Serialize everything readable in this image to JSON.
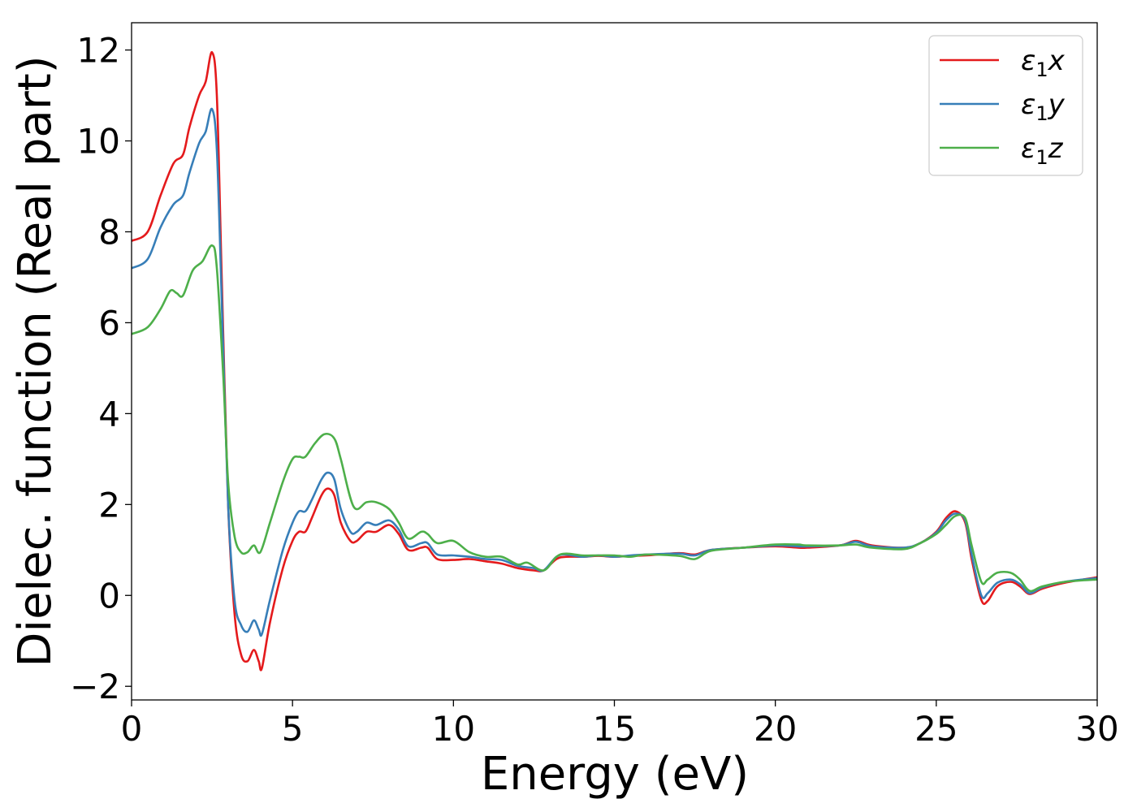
{
  "chart_data": {
    "type": "line",
    "title": "",
    "xlabel": "Energy (eV)",
    "ylabel": "Dielec. function (Real part)",
    "xlim": [
      0,
      30
    ],
    "ylim": [
      -2.3,
      12.6
    ],
    "xticks": [
      0,
      5,
      10,
      15,
      20,
      25,
      30
    ],
    "xtick_labels": [
      "0",
      "5",
      "10",
      "15",
      "20",
      "25",
      "30"
    ],
    "yticks": [
      -2,
      0,
      2,
      4,
      6,
      8,
      10,
      12
    ],
    "ytick_labels": [
      "−2",
      "0",
      "2",
      "4",
      "6",
      "8",
      "10",
      "12"
    ],
    "grid": false,
    "legend_position": "top-right",
    "series": [
      {
        "name": "ε₁x",
        "legend_base": "ε",
        "legend_sub": "1",
        "legend_tail": "x",
        "color": "#e41a1c",
        "points": [
          [
            0,
            7.8
          ],
          [
            0.5,
            8.0
          ],
          [
            0.9,
            8.8
          ],
          [
            1.3,
            9.5
          ],
          [
            1.6,
            9.7
          ],
          [
            1.8,
            10.3
          ],
          [
            2.1,
            11.0
          ],
          [
            2.3,
            11.3
          ],
          [
            2.5,
            11.95
          ],
          [
            2.65,
            11.0
          ],
          [
            2.8,
            7.0
          ],
          [
            3.0,
            2.0
          ],
          [
            3.2,
            -0.4
          ],
          [
            3.4,
            -1.3
          ],
          [
            3.6,
            -1.45
          ],
          [
            3.8,
            -1.2
          ],
          [
            3.95,
            -1.45
          ],
          [
            4.05,
            -1.6
          ],
          [
            4.3,
            -0.6
          ],
          [
            4.7,
            0.6
          ],
          [
            5.0,
            1.2
          ],
          [
            5.2,
            1.4
          ],
          [
            5.4,
            1.4
          ],
          [
            5.6,
            1.7
          ],
          [
            5.9,
            2.2
          ],
          [
            6.1,
            2.35
          ],
          [
            6.3,
            2.2
          ],
          [
            6.5,
            1.6
          ],
          [
            6.8,
            1.2
          ],
          [
            7.0,
            1.2
          ],
          [
            7.3,
            1.4
          ],
          [
            7.6,
            1.4
          ],
          [
            8.0,
            1.55
          ],
          [
            8.3,
            1.35
          ],
          [
            8.6,
            1.0
          ],
          [
            9.0,
            1.05
          ],
          [
            9.2,
            1.05
          ],
          [
            9.5,
            0.8
          ],
          [
            10.0,
            0.78
          ],
          [
            10.5,
            0.8
          ],
          [
            11.0,
            0.75
          ],
          [
            11.5,
            0.7
          ],
          [
            12.0,
            0.6
          ],
          [
            12.5,
            0.55
          ],
          [
            12.8,
            0.55
          ],
          [
            13.2,
            0.8
          ],
          [
            13.5,
            0.85
          ],
          [
            14.0,
            0.85
          ],
          [
            14.5,
            0.87
          ],
          [
            15.0,
            0.85
          ],
          [
            15.5,
            0.87
          ],
          [
            16.0,
            0.88
          ],
          [
            17.0,
            0.93
          ],
          [
            17.5,
            0.9
          ],
          [
            18.0,
            1.0
          ],
          [
            19.0,
            1.05
          ],
          [
            20.0,
            1.08
          ],
          [
            20.7,
            1.05
          ],
          [
            21.0,
            1.05
          ],
          [
            22.0,
            1.1
          ],
          [
            22.5,
            1.2
          ],
          [
            23.0,
            1.1
          ],
          [
            24.0,
            1.05
          ],
          [
            24.5,
            1.15
          ],
          [
            25.0,
            1.4
          ],
          [
            25.3,
            1.7
          ],
          [
            25.6,
            1.85
          ],
          [
            25.9,
            1.6
          ],
          [
            26.1,
            0.8
          ],
          [
            26.4,
            -0.1
          ],
          [
            26.6,
            -0.12
          ],
          [
            26.9,
            0.2
          ],
          [
            27.3,
            0.3
          ],
          [
            27.6,
            0.2
          ],
          [
            27.9,
            0.03
          ],
          [
            28.3,
            0.15
          ],
          [
            29.0,
            0.28
          ],
          [
            30.0,
            0.4
          ]
        ]
      },
      {
        "name": "ε₁y",
        "legend_base": "ε",
        "legend_sub": "1",
        "legend_tail": "y",
        "color": "#377eb8",
        "points": [
          [
            0,
            7.2
          ],
          [
            0.5,
            7.4
          ],
          [
            0.9,
            8.1
          ],
          [
            1.3,
            8.6
          ],
          [
            1.6,
            8.8
          ],
          [
            1.8,
            9.3
          ],
          [
            2.1,
            9.95
          ],
          [
            2.3,
            10.2
          ],
          [
            2.5,
            10.7
          ],
          [
            2.65,
            9.8
          ],
          [
            2.8,
            6.5
          ],
          [
            3.0,
            2.0
          ],
          [
            3.2,
            -0.1
          ],
          [
            3.4,
            -0.65
          ],
          [
            3.6,
            -0.8
          ],
          [
            3.8,
            -0.55
          ],
          [
            3.95,
            -0.75
          ],
          [
            4.05,
            -0.85
          ],
          [
            4.3,
            -0.1
          ],
          [
            4.7,
            1.0
          ],
          [
            5.0,
            1.6
          ],
          [
            5.2,
            1.85
          ],
          [
            5.4,
            1.85
          ],
          [
            5.6,
            2.1
          ],
          [
            5.9,
            2.55
          ],
          [
            6.1,
            2.7
          ],
          [
            6.3,
            2.55
          ],
          [
            6.5,
            1.9
          ],
          [
            6.8,
            1.4
          ],
          [
            7.0,
            1.4
          ],
          [
            7.3,
            1.6
          ],
          [
            7.6,
            1.55
          ],
          [
            8.0,
            1.65
          ],
          [
            8.3,
            1.45
          ],
          [
            8.6,
            1.08
          ],
          [
            9.0,
            1.15
          ],
          [
            9.2,
            1.15
          ],
          [
            9.5,
            0.9
          ],
          [
            10.0,
            0.88
          ],
          [
            10.5,
            0.85
          ],
          [
            11.0,
            0.8
          ],
          [
            11.5,
            0.78
          ],
          [
            12.0,
            0.65
          ],
          [
            12.5,
            0.6
          ],
          [
            12.8,
            0.55
          ],
          [
            13.2,
            0.85
          ],
          [
            13.5,
            0.9
          ],
          [
            14.0,
            0.85
          ],
          [
            14.5,
            0.88
          ],
          [
            15.0,
            0.85
          ],
          [
            15.5,
            0.88
          ],
          [
            16.0,
            0.9
          ],
          [
            17.0,
            0.92
          ],
          [
            17.5,
            0.88
          ],
          [
            18.0,
            1.0
          ],
          [
            19.0,
            1.05
          ],
          [
            20.0,
            1.1
          ],
          [
            20.7,
            1.08
          ],
          [
            21.0,
            1.08
          ],
          [
            22.0,
            1.1
          ],
          [
            22.5,
            1.18
          ],
          [
            23.0,
            1.08
          ],
          [
            24.0,
            1.05
          ],
          [
            24.5,
            1.15
          ],
          [
            25.0,
            1.38
          ],
          [
            25.3,
            1.65
          ],
          [
            25.6,
            1.8
          ],
          [
            25.9,
            1.65
          ],
          [
            26.1,
            0.9
          ],
          [
            26.4,
            0.0
          ],
          [
            26.6,
            0.05
          ],
          [
            26.9,
            0.28
          ],
          [
            27.3,
            0.35
          ],
          [
            27.6,
            0.25
          ],
          [
            27.9,
            0.05
          ],
          [
            28.3,
            0.18
          ],
          [
            29.0,
            0.3
          ],
          [
            30.0,
            0.38
          ]
        ]
      },
      {
        "name": "ε₁z",
        "legend_base": "ε",
        "legend_sub": "1",
        "legend_tail": "z",
        "color": "#4daf4a",
        "points": [
          [
            0,
            5.75
          ],
          [
            0.5,
            5.9
          ],
          [
            0.9,
            6.3
          ],
          [
            1.2,
            6.7
          ],
          [
            1.4,
            6.65
          ],
          [
            1.6,
            6.6
          ],
          [
            1.9,
            7.15
          ],
          [
            2.2,
            7.35
          ],
          [
            2.5,
            7.7
          ],
          [
            2.65,
            7.2
          ],
          [
            2.85,
            4.8
          ],
          [
            3.0,
            2.5
          ],
          [
            3.2,
            1.3
          ],
          [
            3.4,
            0.95
          ],
          [
            3.6,
            0.95
          ],
          [
            3.8,
            1.1
          ],
          [
            4.0,
            0.95
          ],
          [
            4.3,
            1.6
          ],
          [
            4.7,
            2.5
          ],
          [
            5.0,
            3.0
          ],
          [
            5.2,
            3.05
          ],
          [
            5.4,
            3.05
          ],
          [
            5.7,
            3.35
          ],
          [
            6.0,
            3.55
          ],
          [
            6.3,
            3.45
          ],
          [
            6.5,
            3.0
          ],
          [
            6.9,
            1.95
          ],
          [
            7.3,
            2.05
          ],
          [
            7.6,
            2.05
          ],
          [
            8.0,
            1.9
          ],
          [
            8.3,
            1.6
          ],
          [
            8.6,
            1.25
          ],
          [
            9.0,
            1.4
          ],
          [
            9.2,
            1.35
          ],
          [
            9.5,
            1.15
          ],
          [
            10.0,
            1.2
          ],
          [
            10.5,
            0.95
          ],
          [
            11.0,
            0.85
          ],
          [
            11.5,
            0.85
          ],
          [
            12.0,
            0.68
          ],
          [
            12.3,
            0.72
          ],
          [
            12.8,
            0.55
          ],
          [
            13.2,
            0.85
          ],
          [
            13.5,
            0.92
          ],
          [
            14.0,
            0.88
          ],
          [
            14.5,
            0.88
          ],
          [
            15.0,
            0.88
          ],
          [
            15.5,
            0.85
          ],
          [
            16.0,
            0.9
          ],
          [
            17.0,
            0.87
          ],
          [
            17.5,
            0.8
          ],
          [
            18.0,
            0.98
          ],
          [
            19.0,
            1.05
          ],
          [
            20.0,
            1.12
          ],
          [
            20.7,
            1.12
          ],
          [
            21.0,
            1.1
          ],
          [
            22.0,
            1.1
          ],
          [
            22.5,
            1.12
          ],
          [
            23.0,
            1.05
          ],
          [
            24.0,
            1.02
          ],
          [
            24.5,
            1.15
          ],
          [
            25.0,
            1.35
          ],
          [
            25.3,
            1.55
          ],
          [
            25.6,
            1.75
          ],
          [
            25.9,
            1.7
          ],
          [
            26.1,
            1.1
          ],
          [
            26.4,
            0.3
          ],
          [
            26.6,
            0.35
          ],
          [
            26.9,
            0.5
          ],
          [
            27.3,
            0.5
          ],
          [
            27.6,
            0.35
          ],
          [
            27.9,
            0.1
          ],
          [
            28.3,
            0.2
          ],
          [
            29.0,
            0.3
          ],
          [
            30.0,
            0.35
          ]
        ]
      }
    ]
  }
}
